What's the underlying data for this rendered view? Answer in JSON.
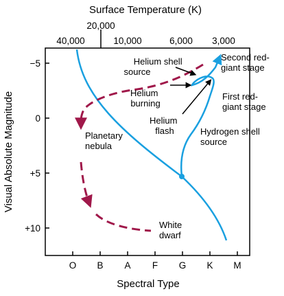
{
  "diagram": {
    "top_axis_title": "Surface Temperature (K)",
    "top_ticks": [
      "20,000",
      "40,000",
      "10,000",
      "6,000",
      "3,000"
    ],
    "left_axis_title": "Visual Absolute Magnitude",
    "left_ticks": [
      "−5",
      "0",
      "+5",
      "+10"
    ],
    "bottom_axis_title": "Spectral Type",
    "bottom_ticks": [
      "O",
      "B",
      "A",
      "F",
      "G",
      "K",
      "M"
    ],
    "labels": {
      "helium_shell_1": "Helium shell",
      "helium_shell_2": "source",
      "helium_burning_1": "Helium",
      "helium_burning_2": "burning",
      "helium_flash_1": "Helium",
      "helium_flash_2": "flash",
      "second_red_giant_1": "Second red-",
      "second_red_giant_2": "giant stage",
      "first_red_giant_1": "First red-",
      "first_red_giant_2": "giant stage",
      "hydrogen_shell_1": "Hydrogen shell",
      "hydrogen_shell_2": "source",
      "planetary_nebula_1": "Planetary",
      "planetary_nebula_2": "nebula",
      "white_dwarf_1": "White",
      "white_dwarf_2": "dwarf"
    },
    "colors": {
      "main_sequence": "#1aa0e0",
      "evolution_path": "#a0184a",
      "axes": "#000000"
    }
  }
}
